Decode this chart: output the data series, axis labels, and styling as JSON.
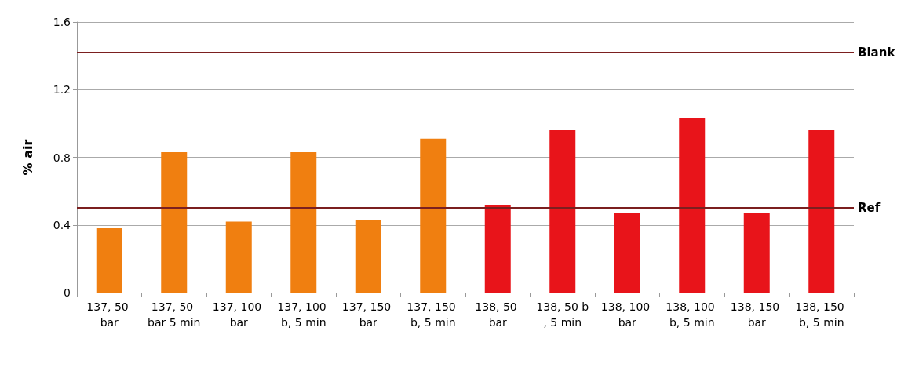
{
  "chart_data": {
    "type": "bar",
    "ylabel": "% air",
    "categories": [
      "137, 50 bar",
      "137, 50 bar 5 min",
      "137, 100 bar",
      "137, 100 b, 5 min",
      "137, 150 bar",
      "137, 150 b, 5 min",
      "138, 50 bar",
      "138, 50 b, 5 min",
      "138, 100 bar",
      "138, 100 b, 5 min",
      "138, 150 bar",
      "138, 150 b, 5 min"
    ],
    "values": [
      0.38,
      0.83,
      0.42,
      0.83,
      0.43,
      0.91,
      0.52,
      0.96,
      0.47,
      1.03,
      0.47,
      0.96
    ],
    "colors": [
      "#f07f10",
      "#f07f10",
      "#f07f10",
      "#f07f10",
      "#f07f10",
      "#f07f10",
      "#e8141a",
      "#e8141a",
      "#e8141a",
      "#e8141a",
      "#e8141a",
      "#e8141a"
    ],
    "ylim": [
      0,
      1.6
    ],
    "yticks": [
      0,
      0.4,
      0.8,
      1.2,
      1.6
    ],
    "grid": "y",
    "ref_lines": [
      {
        "axis": "y",
        "value": 1.42,
        "label": "Blank",
        "color": "#7b1f1f"
      },
      {
        "axis": "y",
        "value": 0.5,
        "label": "Ref",
        "color": "#7b1f1f"
      }
    ]
  }
}
